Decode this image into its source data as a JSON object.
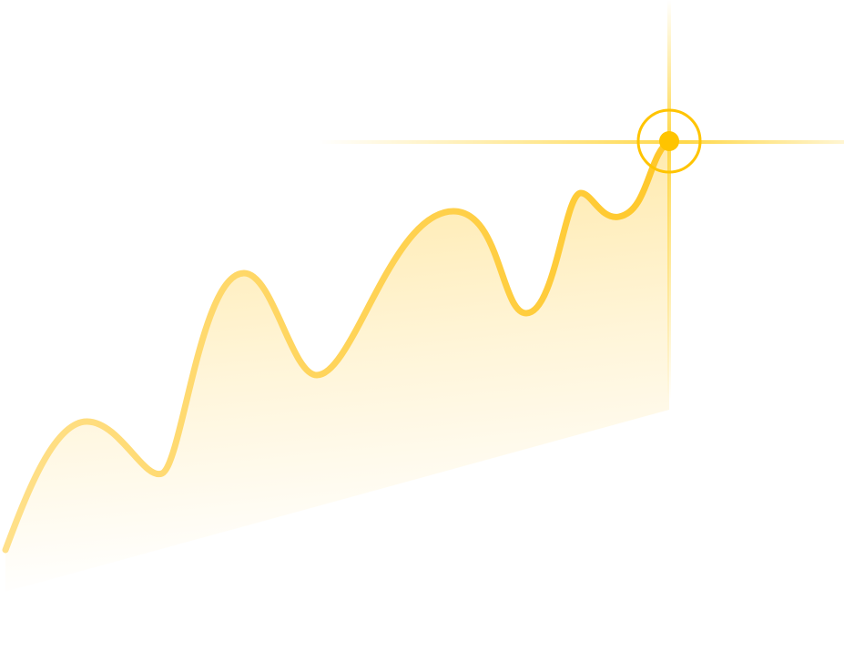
{
  "colors": {
    "background": "#ffffff",
    "line": "#ffc82a",
    "line_light": "#ffe08a",
    "marker": "#ffc400",
    "crosshair": "#ffd84a"
  },
  "icons": {
    "marker": "target-marker-icon"
  }
}
